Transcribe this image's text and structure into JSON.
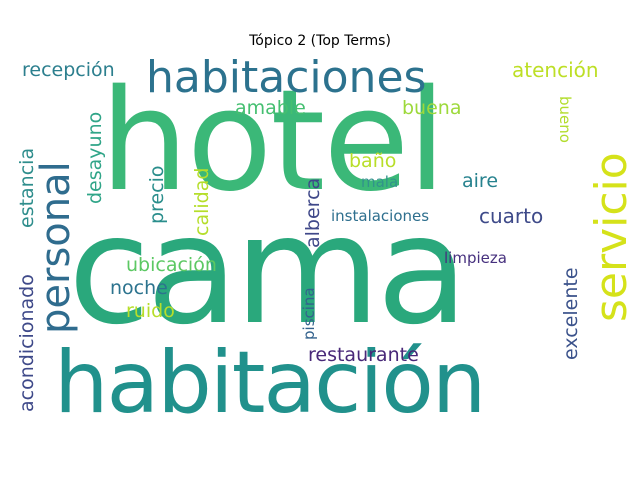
{
  "title": "Tópico 2 (Top Terms)",
  "words": {
    "cama": {
      "text": "cama",
      "color": "#2aa87c"
    },
    "hotel": {
      "text": "hotel",
      "color": "#3bb878"
    },
    "habitacion": {
      "text": "habitación",
      "color": "#21918c"
    },
    "habitaciones": {
      "text": "habitaciones",
      "color": "#2c728e"
    },
    "servicio": {
      "text": "servicio",
      "color": "#d5e21a"
    },
    "personal": {
      "text": "personal",
      "color": "#2f6c8e"
    },
    "recepcion": {
      "text": "recepción",
      "color": "#2c7f8e"
    },
    "atencion": {
      "text": "atención",
      "color": "#bddf26"
    },
    "estancia": {
      "text": "estancia",
      "color": "#2e8d8c"
    },
    "desayuno": {
      "text": "desayuno",
      "color": "#30a588"
    },
    "amable": {
      "text": "amable",
      "color": "#44bf70"
    },
    "buena": {
      "text": "buena",
      "color": "#9dd93b"
    },
    "bueno": {
      "text": "bueno",
      "color": "#b2dd2d"
    },
    "precio": {
      "text": "precio",
      "color": "#2a8e8c"
    },
    "calidad": {
      "text": "calidad",
      "color": "#b5de2b"
    },
    "alberca": {
      "text": "alberca",
      "color": "#3f4889"
    },
    "bano": {
      "text": "baño",
      "color": "#b8de29"
    },
    "mala": {
      "text": "mala",
      "color": "#31938b"
    },
    "aire": {
      "text": "aire",
      "color": "#26828e"
    },
    "cuarto": {
      "text": "cuarto",
      "color": "#3e4a89"
    },
    "instalaciones": {
      "text": "instalaciones",
      "color": "#2e6f8e"
    },
    "acondicionado": {
      "text": "acondicionado",
      "color": "#3e4989"
    },
    "ubicacion": {
      "text": "ubicación",
      "color": "#5cc863"
    },
    "noche": {
      "text": "noche",
      "color": "#2c738e"
    },
    "ruido": {
      "text": "ruido",
      "color": "#b7de2a"
    },
    "piscina": {
      "text": "piscina",
      "color": "#33628d"
    },
    "limpieza": {
      "text": "limpieza",
      "color": "#46307e"
    },
    "excelente": {
      "text": "excelente",
      "color": "#3b528b"
    },
    "restaurante": {
      "text": "restaurante",
      "color": "#482878"
    }
  }
}
